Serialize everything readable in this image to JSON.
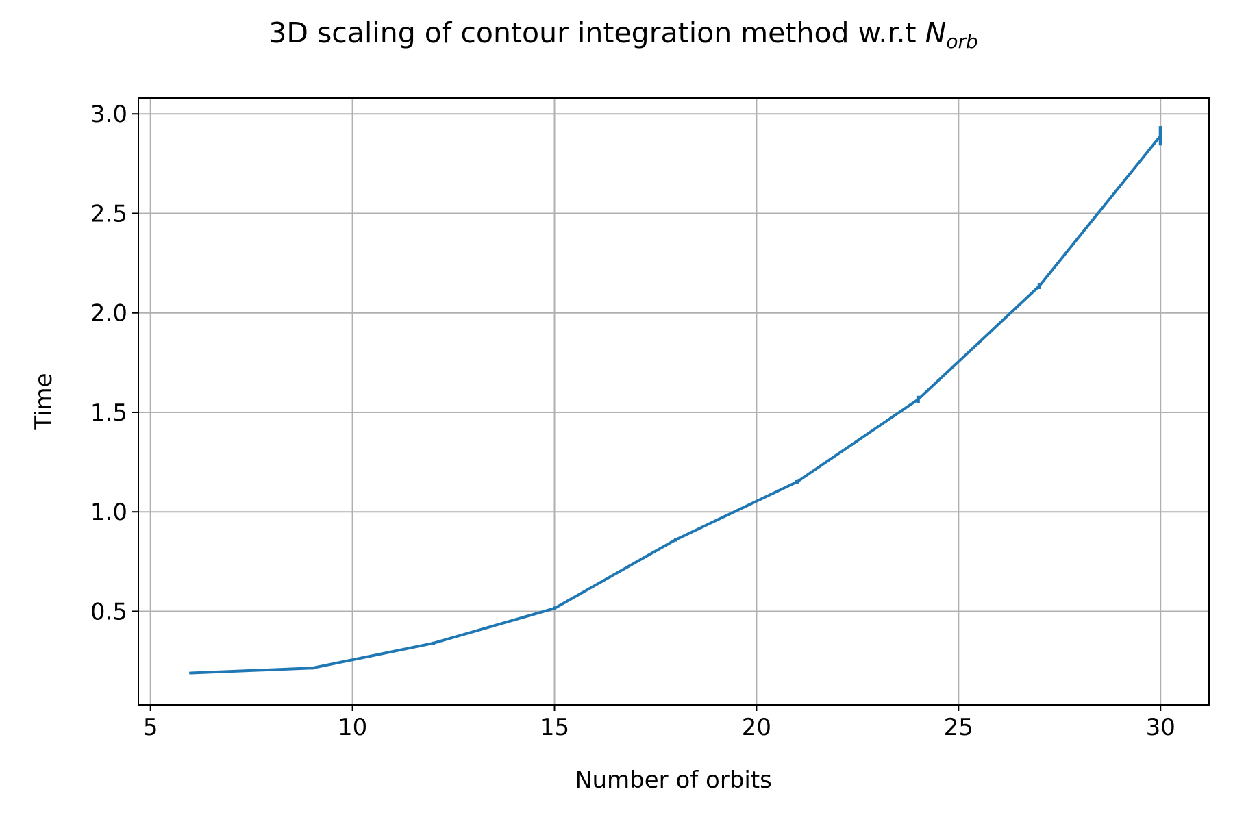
{
  "chart_data": {
    "type": "line",
    "title_main": "3D scaling of contour integration method w.r.t ",
    "title_math_base": "N",
    "title_math_sub": "orb",
    "xlabel": "Number of orbits",
    "ylabel": "Time",
    "xlim": [
      4.7,
      31.2
    ],
    "ylim": [
      0.03,
      3.08
    ],
    "xticks": [
      5,
      10,
      15,
      20,
      25,
      30
    ],
    "xtick_labels": [
      "5",
      "10",
      "15",
      "20",
      "25",
      "30"
    ],
    "yticks": [
      0.5,
      1.0,
      1.5,
      2.0,
      2.5,
      3.0
    ],
    "ytick_labels": [
      "0.5",
      "1.0",
      "1.5",
      "2.0",
      "2.5",
      "3.0"
    ],
    "grid": true,
    "series": [
      {
        "color": "#1f77b4",
        "x": [
          6,
          9,
          12,
          15,
          18,
          21,
          24,
          27,
          30
        ],
        "y": [
          0.19,
          0.215,
          0.34,
          0.515,
          0.86,
          1.15,
          1.565,
          2.135,
          2.89
        ],
        "yerr": [
          0.003,
          0.004,
          0.004,
          0.006,
          0.006,
          0.006,
          0.015,
          0.012,
          0.045
        ]
      }
    ]
  }
}
